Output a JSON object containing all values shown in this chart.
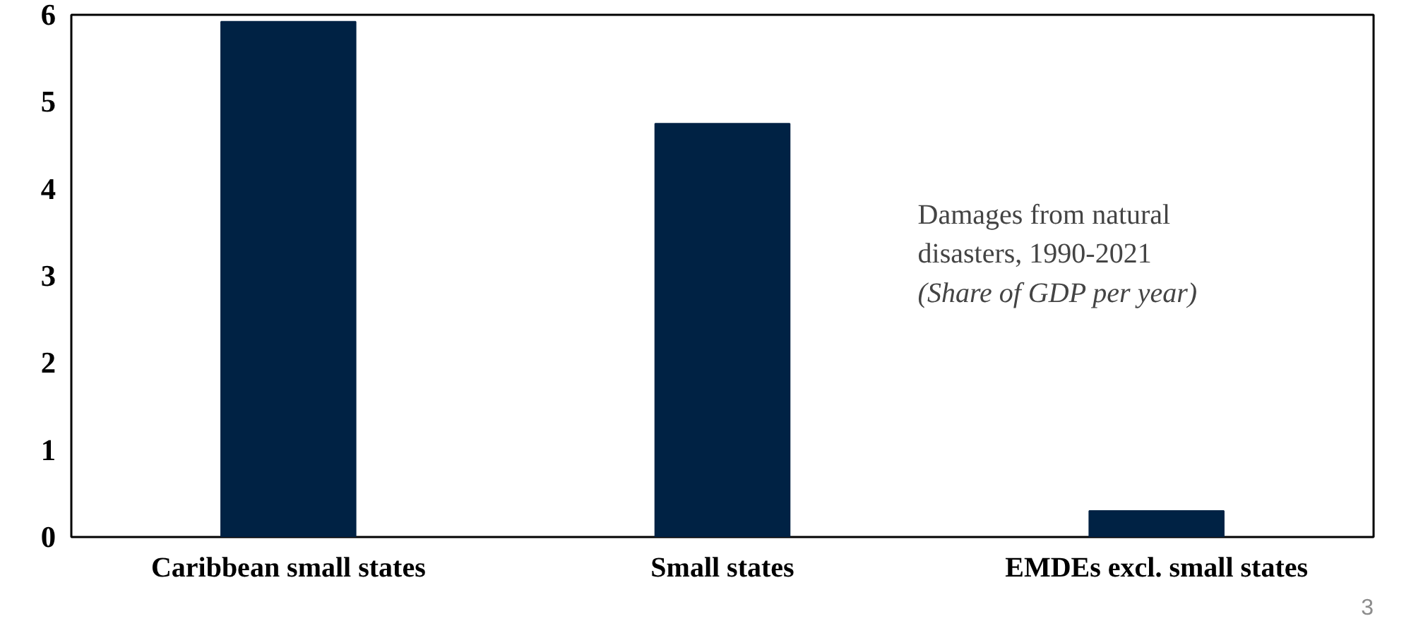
{
  "chart_data": {
    "type": "bar",
    "title": "Damages from natural disasters, 1990-2021",
    "subtitle": "(Share of GDP per year)",
    "categories": [
      "Caribbean small states",
      "Small states",
      "EMDEs excl. small states"
    ],
    "values": [
      5.92,
      4.75,
      0.3
    ],
    "color": "#002244",
    "ylim": [
      0,
      6
    ],
    "yticks": [
      0,
      1,
      2,
      3,
      4,
      5,
      6
    ],
    "grid": false,
    "annotations": [
      "3"
    ]
  }
}
